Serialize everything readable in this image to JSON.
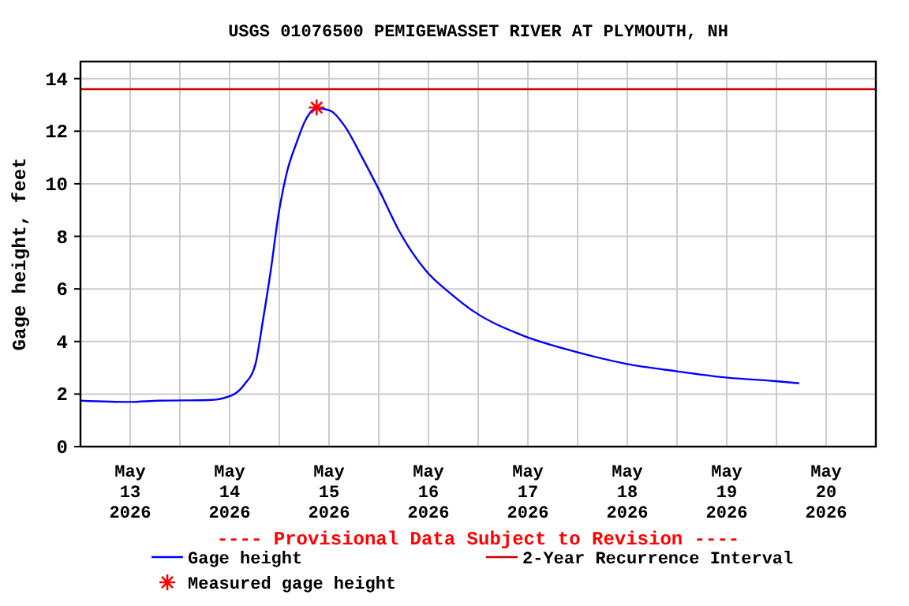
{
  "chart_data": {
    "type": "line",
    "title": "USGS 01076500 PEMIGEWASSET RIVER AT PLYMOUTH, NH",
    "ylabel": "Gage height, feet",
    "annotations": [
      "---- Provisional Data Subject to Revision ----"
    ],
    "xlim": [
      "2026-05-13T00:00",
      "2026-05-21T00:00"
    ],
    "xticks": [
      {
        "value": "2026-05-13T00:00",
        "label": null
      },
      {
        "value": "2026-05-13T12:00",
        "label": "May\n13\n2026"
      },
      {
        "value": "2026-05-14T00:00",
        "label": null
      },
      {
        "value": "2026-05-14T12:00",
        "label": "May\n14\n2026"
      },
      {
        "value": "2026-05-15T00:00",
        "label": null
      },
      {
        "value": "2026-05-15T12:00",
        "label": "May\n15\n2026"
      },
      {
        "value": "2026-05-16T00:00",
        "label": null
      },
      {
        "value": "2026-05-16T12:00",
        "label": "May\n16\n2026"
      },
      {
        "value": "2026-05-17T00:00",
        "label": null
      },
      {
        "value": "2026-05-17T12:00",
        "label": "May\n17\n2026"
      },
      {
        "value": "2026-05-18T00:00",
        "label": null
      },
      {
        "value": "2026-05-18T12:00",
        "label": "May\n18\n2026"
      },
      {
        "value": "2026-05-19T00:00",
        "label": null
      },
      {
        "value": "2026-05-19T12:00",
        "label": "May\n19\n2026"
      },
      {
        "value": "2026-05-20T00:00",
        "label": null
      },
      {
        "value": "2026-05-20T12:00",
        "label": "May\n20\n2026"
      },
      {
        "value": "2026-05-21T00:00",
        "label": null
      }
    ],
    "ylim": [
      0,
      14.65
    ],
    "yticks": [
      0,
      2,
      4,
      6,
      8,
      10,
      12,
      14
    ],
    "grid": true,
    "legend": "bottom",
    "ref_lines": [
      {
        "axis": "y",
        "value": 13.6,
        "label": "2-Year Recurrence Interval",
        "color": "#cc0000"
      }
    ],
    "series": [
      {
        "name": "Gage height",
        "color": "#0000ff",
        "x": [
          "2026-05-13T00:00",
          "2026-05-13T12:00",
          "2026-05-13T19:00",
          "2026-05-14T07:00",
          "2026-05-14T12:30",
          "2026-05-14T15:30",
          "2026-05-14T18:15",
          "2026-05-14T20:00",
          "2026-05-14T22:00",
          "2026-05-14T23:45",
          "2026-05-15T01:45",
          "2026-05-15T04:15",
          "2026-05-15T06:15",
          "2026-05-15T09:00",
          "2026-05-15T12:00",
          "2026-05-15T15:45",
          "2026-05-15T20:00",
          "2026-05-16T00:00",
          "2026-05-16T05:00",
          "2026-05-16T11:30",
          "2026-05-16T17:45",
          "2026-05-16T22:45",
          "2026-05-17T10:15",
          "2026-05-17T23:45",
          "2026-05-18T11:45",
          "2026-05-18T23:45",
          "2026-05-19T11:45",
          "2026-05-19T23:45",
          "2026-05-20T05:30"
        ],
        "values": [
          1.75,
          1.7,
          1.75,
          1.77,
          1.95,
          2.35,
          3.15,
          4.76,
          6.77,
          8.78,
          10.39,
          11.6,
          12.4,
          12.87,
          12.8,
          12.2,
          11.0,
          9.79,
          8.18,
          6.67,
          5.77,
          5.16,
          4.26,
          3.6,
          3.15,
          2.87,
          2.63,
          2.49,
          2.41
        ]
      },
      {
        "name": "Measured gage height",
        "type": "scatter",
        "marker": "cross",
        "color": "#ff0000",
        "x": [
          "2026-05-15T09:00"
        ],
        "values": [
          12.9
        ]
      }
    ]
  }
}
